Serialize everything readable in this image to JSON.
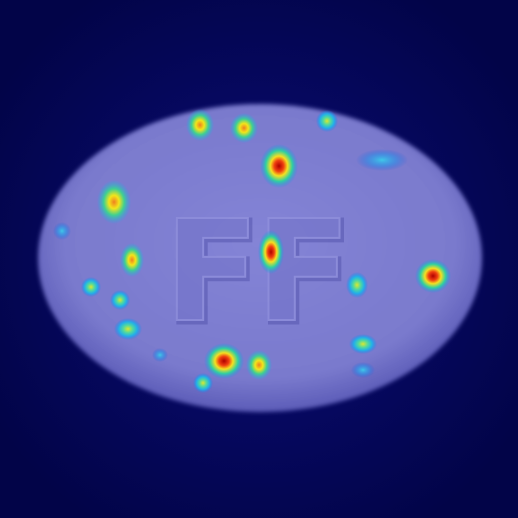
{
  "scene": {
    "subject": "tablet-heatmap-overlay",
    "colors": {
      "background": "#03055a",
      "tablet": "#7f7fd1",
      "tablet_edge": "#6a6ac4",
      "heat_low": "#1aa7f0",
      "heat_mid": "#f2e51a",
      "heat_high": "#c41010"
    },
    "imprint": "FF"
  },
  "heatmap": {
    "hotspots": [
      {
        "id": "top-left",
        "intensity": 0.55
      },
      {
        "id": "top-mid",
        "intensity": 0.6
      },
      {
        "id": "top-right-small",
        "intensity": 0.35
      },
      {
        "id": "upper-center",
        "intensity": 0.9
      },
      {
        "id": "upper-right-streak",
        "intensity": 0.25
      },
      {
        "id": "left-upper",
        "intensity": 0.7
      },
      {
        "id": "left-edge",
        "intensity": 0.2
      },
      {
        "id": "center",
        "intensity": 1.0
      },
      {
        "id": "left-mid",
        "intensity": 0.6
      },
      {
        "id": "left-lower-a",
        "intensity": 0.35
      },
      {
        "id": "left-lower-b",
        "intensity": 0.35
      },
      {
        "id": "left-bottom",
        "intensity": 0.35
      },
      {
        "id": "right-mid",
        "intensity": 0.4
      },
      {
        "id": "right-edge",
        "intensity": 0.8
      },
      {
        "id": "right-lower-a",
        "intensity": 0.3
      },
      {
        "id": "right-lower-b",
        "intensity": 0.25
      },
      {
        "id": "bottom-center",
        "intensity": 0.75
      },
      {
        "id": "bottom-center-2",
        "intensity": 0.45
      },
      {
        "id": "bottom-small",
        "intensity": 0.35
      },
      {
        "id": "lower-center-small",
        "intensity": 0.2
      }
    ]
  }
}
